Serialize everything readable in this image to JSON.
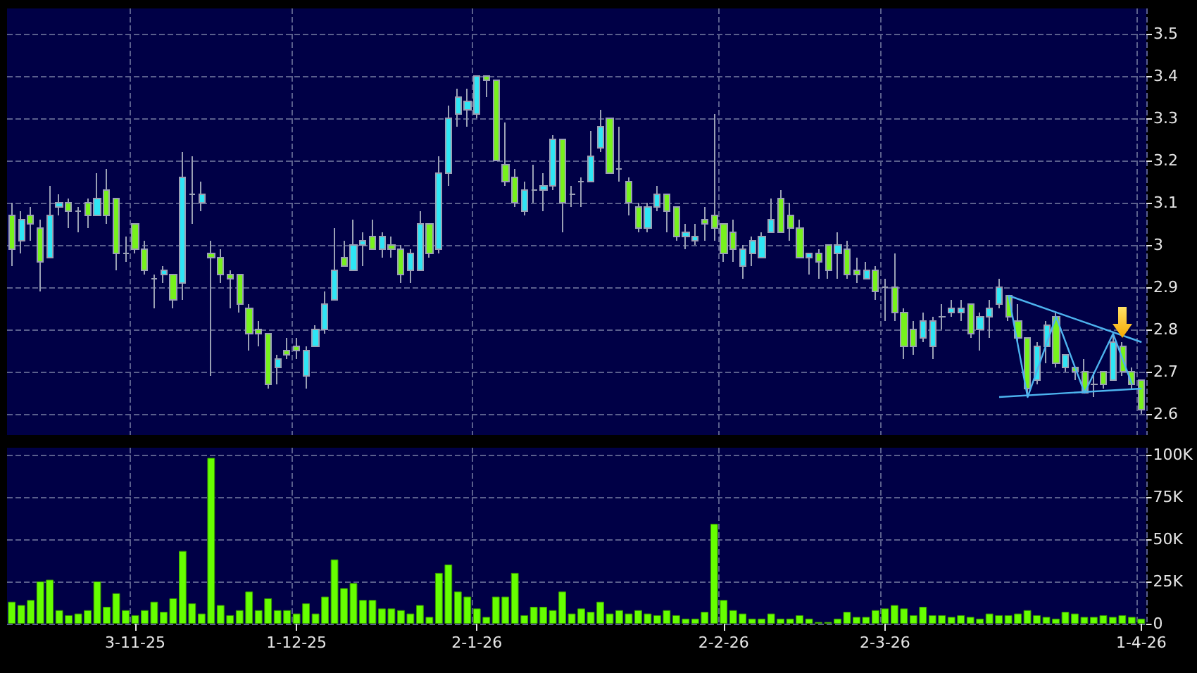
{
  "chart_data": [
    {
      "type": "candlestick",
      "categories": [
        null,
        null,
        null,
        null,
        null,
        null,
        null,
        null,
        null,
        null,
        null,
        null,
        null,
        null,
        null,
        null,
        null,
        null,
        null,
        null,
        null,
        null,
        null,
        null,
        null,
        null,
        null,
        null,
        null,
        null,
        null,
        null,
        null,
        null,
        null,
        null,
        null,
        null,
        null,
        null,
        null,
        null,
        null,
        null,
        null,
        null,
        null,
        null,
        null,
        null,
        null,
        null,
        null,
        null,
        null,
        null,
        null,
        null,
        null,
        null,
        null,
        null,
        null,
        null,
        null,
        null,
        null,
        null,
        null,
        null,
        null,
        null,
        null,
        null,
        null,
        null,
        null,
        null,
        null,
        null,
        null,
        null,
        null,
        null,
        null,
        null,
        null,
        null,
        null,
        null,
        null,
        null,
        null,
        null,
        null,
        null,
        null,
        null,
        null,
        null,
        null,
        null,
        null,
        null,
        null,
        null,
        null,
        null,
        null,
        null,
        null,
        null,
        null,
        null,
        null,
        null,
        null,
        null,
        null,
        null
      ],
      "ohlc": [
        [
          3.07,
          3.1,
          2.95,
          2.99
        ],
        [
          3.01,
          3.08,
          2.98,
          3.06
        ],
        [
          3.07,
          3.09,
          3.01,
          3.05
        ],
        [
          3.04,
          3.06,
          2.89,
          2.96
        ],
        [
          2.97,
          3.14,
          2.97,
          3.07
        ],
        [
          3.09,
          3.12,
          3.07,
          3.1
        ],
        [
          3.1,
          3.11,
          3.04,
          3.08
        ],
        [
          3.08,
          3.09,
          3.03,
          3.08
        ],
        [
          3.1,
          3.11,
          3.04,
          3.07
        ],
        [
          3.07,
          3.17,
          3.07,
          3.11
        ],
        [
          3.13,
          3.18,
          3.05,
          3.07
        ],
        [
          3.11,
          3.11,
          2.94,
          2.98
        ],
        [
          2.98,
          3.02,
          2.96,
          2.98
        ],
        [
          3.05,
          3.05,
          2.98,
          2.99
        ],
        [
          2.99,
          3.01,
          2.93,
          2.94
        ],
        [
          2.92,
          2.93,
          2.85,
          2.92
        ],
        [
          2.93,
          2.95,
          2.91,
          2.94
        ],
        [
          2.93,
          2.93,
          2.85,
          2.87
        ],
        [
          2.91,
          3.22,
          2.87,
          3.16
        ],
        [
          3.12,
          3.21,
          3.05,
          3.12
        ],
        [
          3.1,
          3.15,
          3.08,
          3.12
        ],
        [
          2.98,
          3.01,
          2.69,
          2.97
        ],
        [
          2.97,
          2.99,
          2.91,
          2.93
        ],
        [
          2.93,
          2.94,
          2.85,
          2.92
        ],
        [
          2.93,
          2.93,
          2.84,
          2.86
        ],
        [
          2.85,
          2.86,
          2.75,
          2.79
        ],
        [
          2.8,
          2.82,
          2.76,
          2.79
        ],
        [
          2.79,
          2.79,
          2.66,
          2.67
        ],
        [
          2.71,
          2.74,
          2.67,
          2.73
        ],
        [
          2.75,
          2.78,
          2.73,
          2.74
        ],
        [
          2.76,
          2.78,
          2.73,
          2.75
        ],
        [
          2.69,
          2.76,
          2.66,
          2.75
        ],
        [
          2.76,
          2.81,
          2.76,
          2.8
        ],
        [
          2.8,
          2.89,
          2.79,
          2.86
        ],
        [
          2.87,
          3.04,
          2.87,
          2.94
        ],
        [
          2.97,
          3.01,
          2.95,
          2.95
        ],
        [
          2.94,
          3.06,
          2.94,
          3.0
        ],
        [
          3.0,
          3.03,
          2.95,
          3.01
        ],
        [
          3.02,
          3.06,
          2.99,
          2.99
        ],
        [
          2.99,
          3.03,
          2.97,
          3.02
        ],
        [
          3.0,
          3.02,
          2.97,
          2.99
        ],
        [
          2.99,
          3.0,
          2.91,
          2.93
        ],
        [
          2.94,
          2.99,
          2.91,
          2.98
        ],
        [
          2.94,
          3.08,
          2.94,
          3.05
        ],
        [
          3.05,
          3.05,
          2.97,
          2.98
        ],
        [
          2.99,
          3.21,
          2.98,
          3.17
        ],
        [
          3.17,
          3.33,
          3.14,
          3.3
        ],
        [
          3.31,
          3.37,
          3.28,
          3.35
        ],
        [
          3.32,
          3.37,
          3.28,
          3.34
        ],
        [
          3.31,
          3.4,
          3.3,
          3.4
        ],
        [
          3.4,
          3.4,
          3.35,
          3.39
        ],
        [
          3.39,
          3.39,
          3.2,
          3.2
        ],
        [
          3.19,
          3.29,
          3.14,
          3.15
        ],
        [
          3.16,
          3.18,
          3.09,
          3.1
        ],
        [
          3.08,
          3.15,
          3.07,
          3.13
        ],
        [
          3.13,
          3.19,
          3.1,
          3.13
        ],
        [
          3.13,
          3.17,
          3.08,
          3.14
        ],
        [
          3.14,
          3.26,
          3.13,
          3.25
        ],
        [
          3.25,
          3.25,
          3.03,
          3.1
        ],
        [
          3.12,
          3.14,
          3.09,
          3.12
        ],
        [
          3.15,
          3.16,
          3.09,
          3.15
        ],
        [
          3.15,
          3.27,
          3.15,
          3.21
        ],
        [
          3.23,
          3.32,
          3.22,
          3.28
        ],
        [
          3.3,
          3.3,
          3.17,
          3.17
        ],
        [
          3.18,
          3.28,
          3.15,
          3.18
        ],
        [
          3.15,
          3.16,
          3.07,
          3.1
        ],
        [
          3.09,
          3.1,
          3.03,
          3.04
        ],
        [
          3.04,
          3.1,
          3.03,
          3.09
        ],
        [
          3.09,
          3.14,
          3.08,
          3.12
        ],
        [
          3.12,
          3.12,
          3.03,
          3.08
        ],
        [
          3.09,
          3.09,
          3.01,
          3.02
        ],
        [
          3.02,
          3.05,
          2.99,
          3.03
        ],
        [
          3.01,
          3.05,
          3.0,
          3.02
        ],
        [
          3.06,
          3.09,
          3.01,
          3.05
        ],
        [
          3.07,
          3.31,
          3.01,
          3.04
        ],
        [
          3.05,
          3.05,
          2.96,
          2.98
        ],
        [
          3.03,
          3.06,
          2.96,
          2.99
        ],
        [
          2.95,
          3.0,
          2.92,
          2.99
        ],
        [
          2.98,
          3.02,
          2.95,
          3.01
        ],
        [
          2.97,
          3.03,
          2.97,
          3.02
        ],
        [
          3.03,
          3.11,
          3.03,
          3.06
        ],
        [
          3.11,
          3.13,
          3.03,
          3.03
        ],
        [
          3.07,
          3.1,
          3.01,
          3.04
        ],
        [
          3.04,
          3.06,
          2.97,
          2.97
        ],
        [
          2.97,
          2.98,
          2.93,
          2.98
        ],
        [
          2.98,
          2.99,
          2.92,
          2.96
        ],
        [
          3.0,
          3.0,
          2.92,
          2.94
        ],
        [
          2.98,
          3.03,
          2.92,
          3.0
        ],
        [
          2.99,
          3.01,
          2.92,
          2.93
        ],
        [
          2.94,
          2.97,
          2.91,
          2.93
        ],
        [
          2.92,
          2.96,
          2.92,
          2.94
        ],
        [
          2.94,
          2.95,
          2.87,
          2.89
        ],
        [
          2.9,
          2.92,
          2.82,
          2.9
        ],
        [
          2.9,
          2.98,
          2.82,
          2.84
        ],
        [
          2.84,
          2.85,
          2.73,
          2.76
        ],
        [
          2.8,
          2.82,
          2.74,
          2.76
        ],
        [
          2.78,
          2.84,
          2.77,
          2.82
        ],
        [
          2.76,
          2.83,
          2.73,
          2.82
        ],
        [
          2.83,
          2.86,
          2.8,
          2.83
        ],
        [
          2.84,
          2.87,
          2.83,
          2.85
        ],
        [
          2.84,
          2.87,
          2.82,
          2.85
        ],
        [
          2.86,
          2.86,
          2.78,
          2.79
        ],
        [
          2.8,
          2.84,
          2.75,
          2.83
        ],
        [
          2.83,
          2.87,
          2.78,
          2.85
        ],
        [
          2.86,
          2.92,
          2.85,
          2.9
        ],
        [
          2.88,
          2.88,
          2.82,
          2.83
        ],
        [
          2.82,
          2.86,
          2.77,
          2.78
        ],
        [
          2.78,
          2.78,
          2.64,
          2.66
        ],
        [
          2.68,
          2.77,
          2.67,
          2.76
        ],
        [
          2.76,
          2.82,
          2.72,
          2.81
        ],
        [
          2.83,
          2.84,
          2.71,
          2.72
        ],
        [
          2.71,
          2.74,
          2.7,
          2.74
        ],
        [
          2.71,
          2.71,
          2.68,
          2.7
        ],
        [
          2.7,
          2.73,
          2.65,
          2.65
        ],
        [
          2.67,
          2.7,
          2.64,
          2.67
        ],
        [
          2.7,
          2.7,
          2.66,
          2.67
        ],
        [
          2.68,
          2.79,
          2.68,
          2.77
        ],
        [
          2.76,
          2.77,
          2.69,
          2.7
        ],
        [
          2.7,
          2.71,
          2.66,
          2.67
        ],
        [
          2.68,
          2.68,
          2.6,
          2.61
        ]
      ],
      "colors": [
        "#77f21c",
        "#2ee6f5",
        "#77f21c",
        "#77f21c",
        "#2ee6f5",
        "#2ee6f5",
        "#77f21c",
        "#9aa0b4",
        "#77f21c",
        "#2ee6f5",
        "#77f21c",
        "#77f21c",
        "#9aa0b4",
        "#77f21c",
        "#77f21c",
        "#9aa0b4",
        "#2ee6f5",
        "#77f21c",
        "#2ee6f5",
        "#9aa0b4",
        "#2ee6f5",
        "#77f21c",
        "#77f21c",
        "#77f21c",
        "#77f21c",
        "#77f21c",
        "#77f21c",
        "#77f21c",
        "#2ee6f5",
        "#77f21c",
        "#77f21c",
        "#2ee6f5",
        "#2ee6f5",
        "#2ee6f5",
        "#2ee6f5",
        "#77f21c",
        "#2ee6f5",
        "#2ee6f5",
        "#77f21c",
        "#2ee6f5",
        "#77f21c",
        "#77f21c",
        "#2ee6f5",
        "#2ee6f5",
        "#77f21c",
        "#2ee6f5",
        "#2ee6f5",
        "#2ee6f5",
        "#2ee6f5",
        "#2ee6f5",
        "#77f21c",
        "#77f21c",
        "#77f21c",
        "#77f21c",
        "#2ee6f5",
        "#9aa0b4",
        "#2ee6f5",
        "#2ee6f5",
        "#77f21c",
        "#9aa0b4",
        "#9aa0b4",
        "#2ee6f5",
        "#2ee6f5",
        "#77f21c",
        "#9aa0b4",
        "#77f21c",
        "#77f21c",
        "#2ee6f5",
        "#2ee6f5",
        "#77f21c",
        "#77f21c",
        "#2ee6f5",
        "#2ee6f5",
        "#77f21c",
        "#77f21c",
        "#77f21c",
        "#77f21c",
        "#2ee6f5",
        "#2ee6f5",
        "#2ee6f5",
        "#2ee6f5",
        "#77f21c",
        "#77f21c",
        "#77f21c",
        "#2ee6f5",
        "#77f21c",
        "#77f21c",
        "#2ee6f5",
        "#77f21c",
        "#77f21c",
        "#2ee6f5",
        "#77f21c",
        "#9aa0b4",
        "#77f21c",
        "#77f21c",
        "#77f21c",
        "#2ee6f5",
        "#2ee6f5",
        "#9aa0b4",
        "#2ee6f5",
        "#2ee6f5",
        "#77f21c",
        "#2ee6f5",
        "#2ee6f5",
        "#2ee6f5",
        "#77f21c",
        "#77f21c",
        "#77f21c",
        "#2ee6f5",
        "#2ee6f5",
        "#77f21c",
        "#2ee6f5",
        "#77f21c",
        "#77f21c",
        "#9aa0b4",
        "#77f21c",
        "#2ee6f5",
        "#77f21c",
        "#77f21c",
        "#77f21c"
      ],
      "series": [
        {
          "type": "line",
          "color": "#4db3ef",
          "values": [
            null,
            null,
            null,
            null,
            null,
            null,
            null,
            null,
            null,
            null,
            null,
            null,
            null,
            null,
            null,
            null,
            null,
            null,
            null,
            null,
            null,
            null,
            null,
            null,
            null,
            null,
            null,
            null,
            null,
            null,
            null,
            null,
            null,
            null,
            null,
            null,
            null,
            null,
            null,
            null,
            null,
            null,
            null,
            null,
            null,
            null,
            null,
            null,
            null,
            null,
            null,
            null,
            null,
            null,
            null,
            null,
            null,
            null,
            null,
            null,
            null,
            null,
            null,
            null,
            null,
            null,
            null,
            null,
            null,
            null,
            null,
            null,
            null,
            null,
            null,
            null,
            null,
            null,
            null,
            null,
            null,
            null,
            null,
            null,
            null,
            null,
            null,
            null,
            null,
            null,
            null,
            null,
            null,
            null,
            null,
            null,
            null,
            null,
            null,
            null,
            null,
            null,
            null,
            null,
            null,
            2.88,
            null,
            null,
            null,
            null,
            null,
            null,
            null,
            null,
            null,
            null,
            null,
            null,
            null,
            2.77
          ]
        },
        {
          "type": "line",
          "color": "#4db3ef",
          "values": [
            null,
            null,
            null,
            null,
            null,
            null,
            null,
            null,
            null,
            null,
            null,
            null,
            null,
            null,
            null,
            null,
            null,
            null,
            null,
            null,
            null,
            null,
            null,
            null,
            null,
            null,
            null,
            null,
            null,
            null,
            null,
            null,
            null,
            null,
            null,
            null,
            null,
            null,
            null,
            null,
            null,
            null,
            null,
            null,
            null,
            null,
            null,
            null,
            null,
            null,
            null,
            null,
            null,
            null,
            null,
            null,
            null,
            null,
            null,
            null,
            null,
            null,
            null,
            null,
            null,
            null,
            null,
            null,
            null,
            null,
            null,
            null,
            null,
            null,
            null,
            null,
            null,
            null,
            null,
            null,
            null,
            null,
            null,
            null,
            null,
            null,
            null,
            null,
            null,
            null,
            null,
            null,
            null,
            null,
            null,
            null,
            null,
            null,
            null,
            null,
            null,
            null,
            null,
            null,
            2.64,
            null,
            null,
            null,
            null,
            null,
            null,
            null,
            null,
            null,
            null,
            null,
            null,
            null,
            null,
            2.66
          ]
        },
        {
          "type": "line",
          "color": "#4db3ef",
          "values": [
            null,
            null,
            null,
            null,
            null,
            null,
            null,
            null,
            null,
            null,
            null,
            null,
            null,
            null,
            null,
            null,
            null,
            null,
            null,
            null,
            null,
            null,
            null,
            null,
            null,
            null,
            null,
            null,
            null,
            null,
            null,
            null,
            null,
            null,
            null,
            null,
            null,
            null,
            null,
            null,
            null,
            null,
            null,
            null,
            null,
            null,
            null,
            null,
            null,
            null,
            null,
            null,
            null,
            null,
            null,
            null,
            null,
            null,
            null,
            null,
            null,
            null,
            null,
            null,
            null,
            null,
            null,
            null,
            null,
            null,
            null,
            null,
            null,
            null,
            null,
            null,
            null,
            null,
            null,
            null,
            null,
            null,
            null,
            null,
            null,
            null,
            null,
            null,
            null,
            null,
            null,
            null,
            null,
            null,
            null,
            null,
            null,
            null,
            null,
            null,
            null,
            null,
            null,
            null,
            null,
            2.88,
            null,
            2.64,
            null,
            null,
            2.83,
            null,
            null,
            2.65,
            null,
            null,
            2.79,
            null,
            2.67,
            null
          ]
        }
      ],
      "ylim": [
        2.55,
        3.56
      ],
      "yticks": [
        2.6,
        2.7,
        2.8,
        2.9,
        3,
        3.1,
        3.2,
        3.3,
        3.4,
        3.5
      ],
      "grid": true,
      "tick_labels": "y"
    },
    {
      "type": "bar",
      "categories": [
        null,
        null,
        null,
        null,
        null,
        null,
        null,
        null,
        null,
        null,
        null,
        null,
        null,
        "3-11-25",
        null,
        null,
        null,
        null,
        null,
        null,
        null,
        null,
        null,
        null,
        null,
        null,
        null,
        null,
        null,
        null,
        "1-12-25",
        null,
        null,
        null,
        null,
        null,
        null,
        null,
        null,
        null,
        null,
        null,
        null,
        null,
        null,
        null,
        null,
        null,
        null,
        "2-1-26",
        null,
        null,
        null,
        null,
        null,
        null,
        null,
        null,
        null,
        null,
        null,
        null,
        null,
        null,
        null,
        null,
        null,
        null,
        null,
        null,
        null,
        null,
        null,
        null,
        null,
        "2-2-26",
        null,
        null,
        null,
        null,
        null,
        null,
        null,
        null,
        null,
        null,
        null,
        null,
        null,
        null,
        null,
        null,
        "2-3-26",
        null,
        null,
        null,
        null,
        null,
        null,
        null,
        null,
        null,
        null,
        null,
        null,
        null,
        null,
        null,
        null,
        null,
        null,
        null,
        null,
        null,
        null,
        null,
        null,
        null,
        null,
        "1-4-26"
      ],
      "values": [
        13,
        11,
        14,
        25,
        26,
        8,
        5,
        6,
        8,
        25,
        10,
        18,
        8,
        5,
        8,
        13,
        7,
        15,
        43,
        12,
        6,
        98,
        11,
        5,
        8,
        19,
        8,
        15,
        8,
        8,
        6,
        12,
        6,
        16,
        38,
        21,
        24,
        14,
        14,
        9,
        9,
        8,
        6,
        11,
        4,
        30,
        35,
        19,
        16,
        9,
        4,
        16,
        16,
        30,
        5,
        10,
        10,
        8,
        19,
        6,
        9,
        7,
        13,
        6,
        8,
        6,
        8,
        6,
        5,
        8,
        5,
        3,
        3,
        7,
        59,
        14,
        8,
        6,
        3,
        3,
        6,
        3,
        3,
        5,
        3,
        1,
        1,
        3,
        7,
        4,
        4,
        8,
        9,
        11,
        9,
        5,
        10,
        5,
        5,
        4,
        5,
        4,
        3,
        6,
        5,
        5,
        6,
        8,
        5,
        4,
        3,
        7,
        6,
        4,
        4,
        5,
        4,
        5,
        4,
        3
      ],
      "color": "#66ff00",
      "ylim": [
        0,
        104
      ],
      "yticks": [
        0,
        {
          "value": 25,
          "label": "25K"
        },
        {
          "value": 50,
          "label": "50K"
        },
        {
          "value": 75,
          "label": "75K"
        },
        {
          "value": 100,
          "label": "100K"
        }
      ],
      "grid": true
    }
  ]
}
